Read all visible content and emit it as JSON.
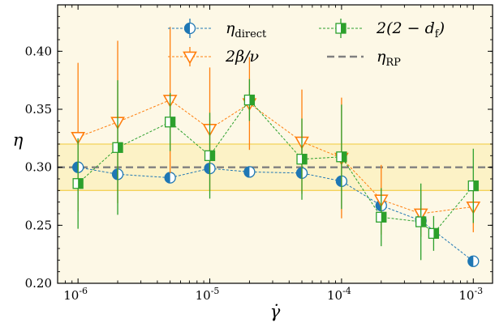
{
  "chart_data": {
    "type": "scatter",
    "xscale": "log",
    "xlim": [
      7e-07,
      0.0014
    ],
    "ylim": [
      0.2,
      0.44
    ],
    "xlabel": "γ̇",
    "ylabel": "η",
    "xticks": [
      {
        "value": 1e-06,
        "base": "10",
        "exp": "-6"
      },
      {
        "value": 1e-05,
        "base": "10",
        "exp": "-5"
      },
      {
        "value": 0.0001,
        "base": "10",
        "exp": "-4"
      },
      {
        "value": 0.001,
        "base": "10",
        "exp": "-3"
      }
    ],
    "yticks": [
      {
        "value": 0.2,
        "label": "0.20"
      },
      {
        "value": 0.25,
        "label": "0.25"
      },
      {
        "value": 0.3,
        "label": "0.30"
      },
      {
        "value": 0.35,
        "label": "0.35"
      },
      {
        "value": 0.4,
        "label": "0.40"
      }
    ],
    "eta_rp": 0.3,
    "eta_band": [
      0.28,
      0.32
    ],
    "series": [
      {
        "name": "eta_direct",
        "legend_main": "η",
        "legend_sub": "direct",
        "color": "#1f77b4",
        "marker": "circle",
        "points": [
          {
            "x": 1e-06,
            "y": 0.3,
            "err": 0
          },
          {
            "x": 2e-06,
            "y": 0.294,
            "err": 0
          },
          {
            "x": 5e-06,
            "y": 0.291,
            "err": 0
          },
          {
            "x": 1e-05,
            "y": 0.299,
            "err": 0
          },
          {
            "x": 2e-05,
            "y": 0.296,
            "err": 0
          },
          {
            "x": 5e-05,
            "y": 0.295,
            "err": 0
          },
          {
            "x": 0.0001,
            "y": 0.288,
            "err": 0
          },
          {
            "x": 0.0002,
            "y": 0.267,
            "err": 0
          },
          {
            "x": 0.0004,
            "y": 0.254,
            "err": 0
          },
          {
            "x": 0.001,
            "y": 0.219,
            "err": 0
          }
        ]
      },
      {
        "name": "two_beta_over_nu",
        "legend_main": "2β/ν",
        "legend_sub": "",
        "color": "#ff7f0e",
        "marker": "triangle",
        "points": [
          {
            "x": 1e-06,
            "y": 0.326,
            "err": 0.064
          },
          {
            "x": 2e-06,
            "y": 0.339,
            "err": 0.07
          },
          {
            "x": 5e-06,
            "y": 0.358,
            "err": 0.063
          },
          {
            "x": 1e-05,
            "y": 0.333,
            "err": 0.053
          },
          {
            "x": 2e-05,
            "y": 0.355,
            "err": 0.04
          },
          {
            "x": 5e-05,
            "y": 0.322,
            "err": 0.045
          },
          {
            "x": 0.0001,
            "y": 0.308,
            "err": 0.052
          },
          {
            "x": 0.0002,
            "y": 0.272,
            "err": 0.03
          },
          {
            "x": 0.0004,
            "y": 0.26,
            "err": 0.02
          },
          {
            "x": 0.001,
            "y": 0.266,
            "err": 0.022
          }
        ]
      },
      {
        "name": "two_2_minus_df",
        "legend_main": "2(2 − d",
        "legend_sub": "f",
        "legend_tail": ")",
        "color": "#2ca02c",
        "marker": "square",
        "points": [
          {
            "x": 1e-06,
            "y": 0.286,
            "err": 0.039
          },
          {
            "x": 2e-06,
            "y": 0.317,
            "err": 0.058
          },
          {
            "x": 5e-06,
            "y": 0.339,
            "err": 0.025
          },
          {
            "x": 1e-05,
            "y": 0.31,
            "err": 0.037
          },
          {
            "x": 2e-05,
            "y": 0.358,
            "err": 0.018
          },
          {
            "x": 5e-05,
            "y": 0.307,
            "err": 0.035
          },
          {
            "x": 0.0001,
            "y": 0.309,
            "err": 0.045
          },
          {
            "x": 0.0002,
            "y": 0.257,
            "err": 0.025
          },
          {
            "x": 0.0004,
            "y": 0.253,
            "err": 0.033
          },
          {
            "x": 0.0005,
            "y": 0.243,
            "err": 0.015
          },
          {
            "x": 0.001,
            "y": 0.284,
            "err": 0.032
          }
        ]
      }
    ],
    "reference_line": {
      "name": "eta_RP",
      "legend_main": "η",
      "legend_sub": "RP",
      "value": 0.3,
      "color": "#808080"
    }
  }
}
